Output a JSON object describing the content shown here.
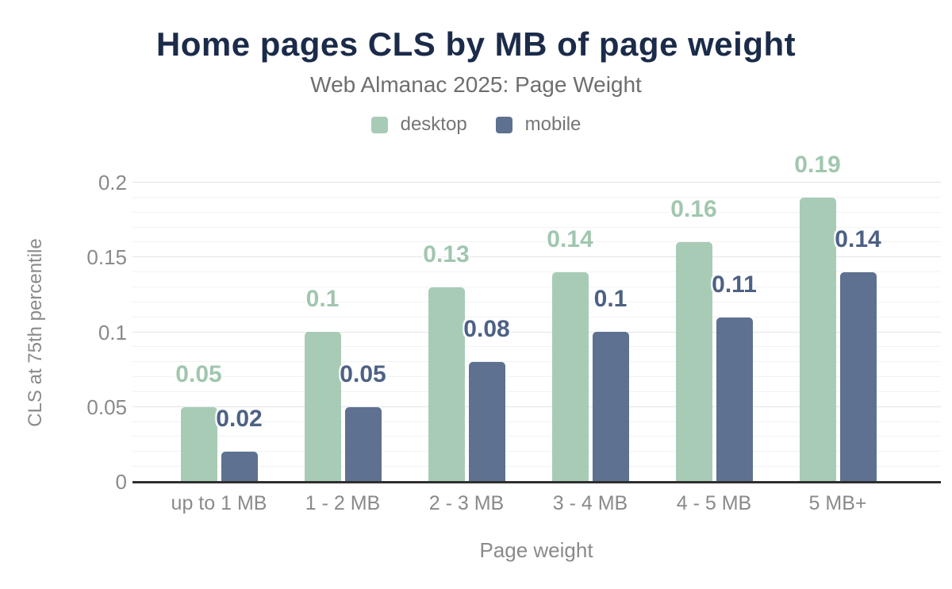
{
  "title": "Home pages CLS by MB of page weight",
  "subtitle": "Web Almanac 2025: Page Weight",
  "colors": {
    "title": "#1b2b49",
    "subtitle": "#6e6e6e",
    "axis_text": "#8a8a8a",
    "legend_text": "#757575",
    "axis_line": "#2f2f2f",
    "grid_major": "#e4e4e4",
    "grid_minor": "#f2f2f2",
    "desktop": "#a8cbb6",
    "mobile": "#5e7190"
  },
  "chart_data": {
    "type": "bar",
    "title": "Home pages CLS by MB of page weight",
    "subtitle": "Web Almanac 2025: Page Weight",
    "categories": [
      "up to 1 MB",
      "1 - 2 MB",
      "2 - 3 MB",
      "3 - 4 MB",
      "4 - 5 MB",
      "5 MB+"
    ],
    "series": [
      {
        "name": "desktop",
        "color": "#a8cbb6",
        "label_color": "#a1c6af",
        "values": [
          0.05,
          0.1,
          0.13,
          0.14,
          0.16,
          0.19
        ],
        "value_labels": [
          "0.05",
          "0.1",
          "0.13",
          "0.14",
          "0.16",
          "0.19"
        ]
      },
      {
        "name": "mobile",
        "color": "#5e7190",
        "label_color": "#4d6185",
        "values": [
          0.02,
          0.05,
          0.08,
          0.1,
          0.11,
          0.14
        ],
        "value_labels": [
          "0.02",
          "0.05",
          "0.08",
          "0.1",
          "0.11",
          "0.14"
        ]
      }
    ],
    "xlabel": "Page weight",
    "ylabel": "CLS at 75th percentile",
    "ylim": [
      0,
      0.2
    ],
    "yticks": [
      0,
      0.05,
      0.1,
      0.15,
      0.2
    ],
    "ytick_labels": [
      "0",
      "0.05",
      "0.1",
      "0.15",
      "0.2"
    ],
    "minor_grid_step": 0.01,
    "grid": true,
    "legend_position": "top",
    "value_labels_shown": true
  }
}
